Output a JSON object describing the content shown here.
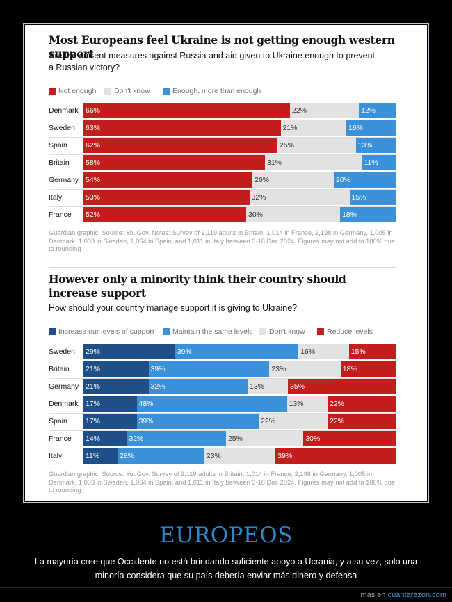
{
  "chart_data": [
    {
      "type": "bar",
      "stacked": true,
      "orientation": "horizontal",
      "title": "Most Europeans feel Ukraine is not getting enough western support",
      "subtitle": "Are the current measures against Russia and aid given to Ukraine enough to prevent a Russian victory?",
      "legend_position": "top-left",
      "categories": [
        "Denmark",
        "Sweden",
        "Spain",
        "Britain",
        "Germany",
        "Italy",
        "France"
      ],
      "series": [
        {
          "name": "Not enough",
          "color": "#c21e1e",
          "text_color": "#ffffff",
          "values": [
            66,
            63,
            62,
            58,
            54,
            53,
            52
          ]
        },
        {
          "name": "Don't know",
          "color": "#e2e2e2",
          "text_color": "#333333",
          "values": [
            22,
            21,
            25,
            31,
            26,
            32,
            30
          ]
        },
        {
          "name": "Enough, more than enough",
          "color": "#3a91d8",
          "text_color": "#ffffff",
          "values": [
            12,
            16,
            13,
            11,
            20,
            15,
            18
          ]
        }
      ],
      "note": "Guardian graphic. Source: YouGov. Notes: Survey of 2,119 adults in Britain, 1,014 in France, 2,198 in Germany, 1,005 in Denmark, 1,003 in Sweden, 1,064 in Spain, and 1,011 in Italy between 3-18 Dec 2024. Figures may not add to 100% due to rounding"
    },
    {
      "type": "bar",
      "stacked": true,
      "orientation": "horizontal",
      "title": "However only a minority think their country should increase support",
      "subtitle": "How should your country manage support it is giving to Ukraine?",
      "legend_position": "top-left",
      "categories": [
        "Sweden",
        "Britain",
        "Germany",
        "Denmark",
        "Spain",
        "France",
        "Italy"
      ],
      "series": [
        {
          "name": "Increase our levels of support",
          "color": "#1f4f86",
          "text_color": "#ffffff",
          "values": [
            29,
            21,
            21,
            17,
            17,
            14,
            11
          ]
        },
        {
          "name": "Maintain the same levels",
          "color": "#3a91d8",
          "text_color": "#ffffff",
          "values": [
            39,
            39,
            32,
            48,
            39,
            32,
            28
          ]
        },
        {
          "name": "Don't know",
          "color": "#e2e2e2",
          "text_color": "#333333",
          "values": [
            16,
            23,
            13,
            13,
            22,
            25,
            23
          ]
        },
        {
          "name": "Reduce levels",
          "color": "#c21e1e",
          "text_color": "#ffffff",
          "values": [
            15,
            18,
            35,
            22,
            22,
            30,
            39
          ]
        }
      ],
      "note": "Guardian graphic. Source: YouGov. Survey of 2,119 adults in Britain, 1,014 in France, 2,198 in Germany, 1,005 in Denmark, 1,003 in Sweden, 1,064 in Spain, and 1,011 in Italy between 3-18 Dec 2024. Figures may not add to 100% due to rounding"
    }
  ],
  "caption": {
    "title": "EUROPEOS",
    "text": "La mayoría cree que Occidente no está brindando suficiente apoyo a Ucrania, y a su vez, solo una minoría considera que su país debería enviar más dinero y defensa"
  },
  "footer": {
    "prefix": "más en",
    "link": "cuantarazon.com"
  }
}
